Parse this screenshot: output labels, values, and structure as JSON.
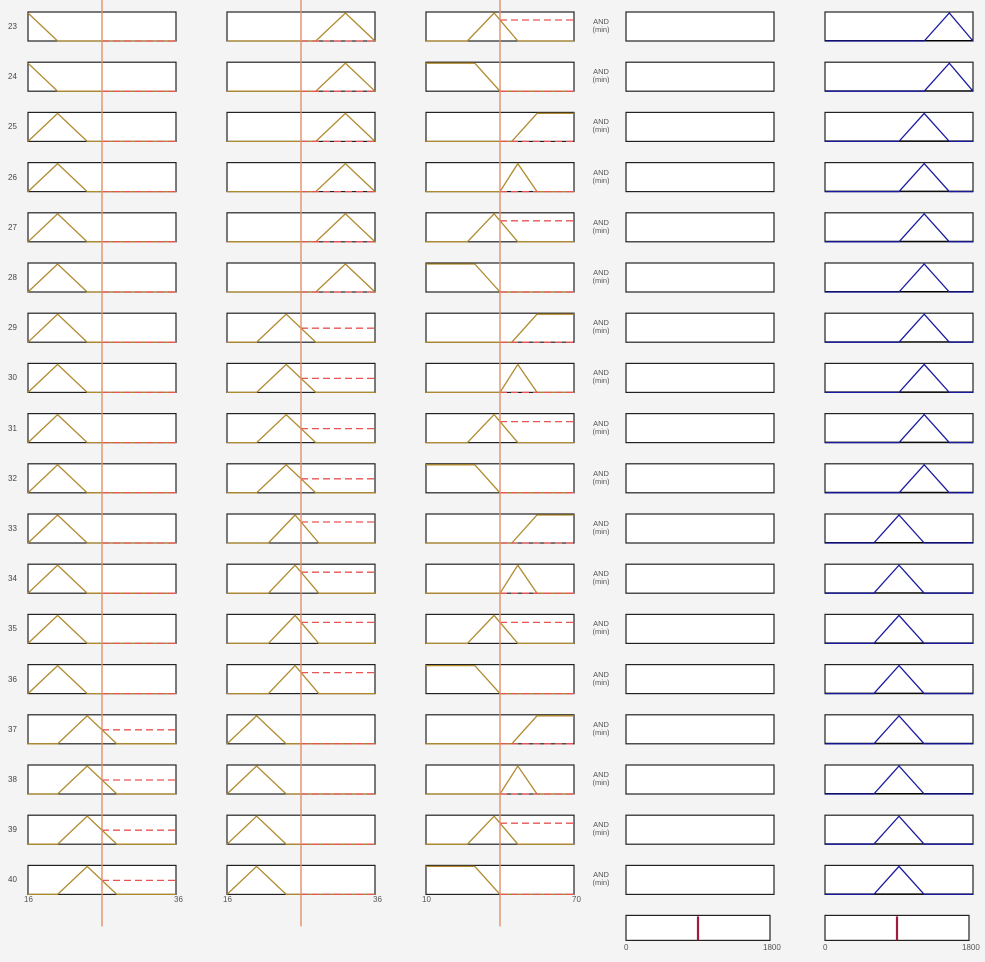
{
  "rows": [
    {
      "num": "23",
      "and": "AND",
      "min": "(min)"
    },
    {
      "num": "24",
      "and": "AND",
      "min": "(min)"
    },
    {
      "num": "25",
      "and": "AND",
      "min": "(min)"
    },
    {
      "num": "26",
      "and": "AND",
      "min": "(min)"
    },
    {
      "num": "27",
      "and": "AND",
      "min": "(min)"
    },
    {
      "num": "28",
      "and": "AND",
      "min": "(min)"
    },
    {
      "num": "29",
      "and": "AND",
      "min": "(min)"
    },
    {
      "num": "30",
      "and": "AND",
      "min": "(min)"
    },
    {
      "num": "31",
      "and": "AND",
      "min": "(min)"
    },
    {
      "num": "32",
      "and": "AND",
      "min": "(min)"
    },
    {
      "num": "33",
      "and": "AND",
      "min": "(min)"
    },
    {
      "num": "34",
      "and": "AND",
      "min": "(min)"
    },
    {
      "num": "35",
      "and": "AND",
      "min": "(min)"
    },
    {
      "num": "36",
      "and": "AND",
      "min": "(min)"
    },
    {
      "num": "37",
      "and": "AND",
      "min": "(min)"
    },
    {
      "num": "38",
      "and": "AND",
      "min": "(min)"
    },
    {
      "num": "39",
      "and": "AND",
      "min": "(min)"
    },
    {
      "num": "40",
      "and": "AND",
      "min": "(min)"
    }
  ],
  "inputs": [
    {
      "range_min": "16",
      "range_max": "36",
      "shapes": [
        "zmf-a",
        "zmf-a",
        "tri-1",
        "tri-1",
        "tri-1",
        "tri-1",
        "tri-1",
        "tri-1",
        "tri-1",
        "tri-1",
        "tri-1",
        "tri-1",
        "tri-1",
        "tri-1",
        "tri-2",
        "tri-2",
        "tri-2",
        "tri-2"
      ]
    },
    {
      "range_min": "16",
      "range_max": "36",
      "shapes": [
        "tri-3",
        "tri-3",
        "tri-3",
        "tri-3",
        "tri-3",
        "tri-3",
        "tri-2",
        "tri-2",
        "tri-2",
        "tri-2",
        "tri-b",
        "tri-b",
        "tri-b",
        "tri-b",
        "tri-1",
        "tri-1",
        "tri-1",
        "tri-1"
      ]
    },
    {
      "range_min": "10",
      "range_max": "70",
      "shapes": [
        "tri-b",
        "zmf",
        "smf",
        "tri-c",
        "tri-b",
        "zmf",
        "smf",
        "tri-c",
        "tri-b",
        "zmf",
        "smf",
        "tri-c",
        "tri-b",
        "zmf",
        "smf",
        "tri-c",
        "tri-b",
        "zmf"
      ]
    }
  ],
  "output": {
    "range_min": "0",
    "range_max": "1800",
    "shapes": [
      "o4",
      "o4",
      "o3",
      "o3",
      "o3",
      "o3",
      "o3",
      "o3",
      "o3",
      "o3",
      "o2",
      "o2",
      "o2",
      "o2",
      "o2",
      "o2",
      "o2",
      "o2"
    ]
  },
  "input_values": [
    {
      "frac": 0.5
    },
    {
      "frac": 0.5
    },
    {
      "frac": 0.5
    }
  ],
  "output_value": {
    "frac": 0.5
  },
  "colors": {
    "mf": "#b08a2e",
    "fired": "#e85555",
    "input_line": "#e0906a",
    "output_mf": "#1a1aa0",
    "aggregate_line": "#a01c3a",
    "frame": "#222222"
  }
}
